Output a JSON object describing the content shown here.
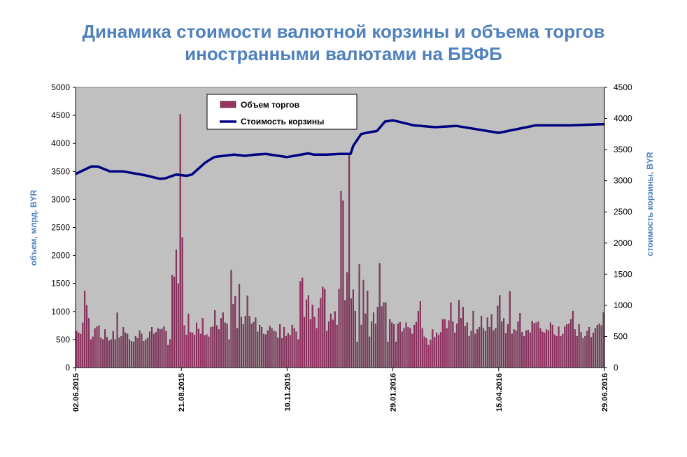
{
  "chart_data": {
    "type": "bar+line",
    "title_line1": "Динамика стоимости валютной корзины и объема торгов",
    "title_line2": "иностранными валютами на БВФБ",
    "y_left_label": "объем, млрд. BYR",
    "y_right_label": "стоимость корзины, BYR",
    "y_left_lim": [
      0,
      5000
    ],
    "y_right_lim": [
      0,
      4500
    ],
    "y_left_ticks": [
      "0",
      "500",
      "1000",
      "1500",
      "2000",
      "2500",
      "3000",
      "3500",
      "4000",
      "4500",
      "5000"
    ],
    "y_right_ticks": [
      "0",
      "500",
      "1000",
      "1500",
      "2000",
      "2500",
      "3000",
      "3500",
      "4000",
      "4500"
    ],
    "x_ticks": [
      "02.06.2015",
      "21.08.2015",
      "10.11.2015",
      "29.01.2016",
      "15.04.2016",
      "29.06.2016"
    ],
    "grid": false,
    "legend_position": "top-center",
    "series": [
      {
        "name": "Объем торгов",
        "kind": "bar",
        "color": "#993366",
        "values": [
          650,
          620,
          600,
          800,
          1370,
          1110,
          880,
          500,
          550,
          700,
          730,
          750,
          530,
          500,
          680,
          540,
          480,
          500,
          650,
          500,
          980,
          530,
          560,
          720,
          620,
          600,
          500,
          470,
          460,
          560,
          520,
          660,
          600,
          470,
          500,
          530,
          640,
          720,
          600,
          630,
          700,
          680,
          690,
          730,
          650,
          400,
          500,
          1650,
          1620,
          2100,
          1500,
          4520,
          2320,
          750,
          580,
          960,
          630,
          620,
          580,
          800,
          690,
          600,
          880,
          570,
          590,
          550,
          720,
          730,
          1020,
          750,
          680,
          880,
          980,
          800,
          780,
          500,
          1740,
          1130,
          1270,
          700,
          1490,
          900,
          770,
          920,
          1280,
          920,
          780,
          810,
          890,
          640,
          760,
          720,
          600,
          590,
          660,
          740,
          700,
          650,
          640,
          530,
          770,
          520,
          720,
          560,
          610,
          580,
          760,
          700,
          640,
          500,
          1540,
          1600,
          900,
          1210,
          1290,
          860,
          1120,
          900,
          700,
          1060,
          1240,
          1440,
          1400,
          650,
          820,
          960,
          850,
          1000,
          760,
          1400,
          3150,
          2980,
          1200,
          1700,
          3790,
          1230,
          1390,
          1010,
          460,
          1840,
          760,
          1560,
          960,
          1370,
          550,
          820,
          980,
          780,
          1080,
          1860,
          1090,
          1160,
          1160,
          460,
          860,
          800,
          770,
          460,
          780,
          810,
          640,
          700,
          800,
          720,
          700,
          600,
          760,
          810,
          1010,
          1180,
          700,
          550,
          520,
          400,
          490,
          680,
          540,
          620,
          580,
          630,
          860,
          860,
          700,
          840,
          1160,
          820,
          620,
          780,
          1200,
          880,
          1080,
          740,
          800,
          560,
          650,
          1010,
          600,
          680,
          720,
          920,
          700,
          650,
          890,
          720,
          950,
          660,
          700,
          1100,
          1290,
          820,
          880,
          610,
          770,
          1360,
          600,
          680,
          660,
          820,
          970,
          630,
          560,
          660,
          670,
          620,
          830,
          790,
          800,
          820,
          700,
          640,
          620,
          680,
          660,
          800,
          760,
          590,
          560,
          730,
          560,
          600,
          730,
          770,
          780,
          860,
          1010,
          680,
          560,
          770,
          630,
          520,
          560,
          650,
          720,
          540,
          620,
          700,
          760,
          780,
          750,
          980
        ]
      },
      {
        "name": "Стоимость корзины",
        "kind": "line",
        "color": "#000080",
        "x_fraction": [
          0,
          0.03,
          0.042,
          0.065,
          0.09,
          0.13,
          0.16,
          0.17,
          0.19,
          0.21,
          0.22,
          0.245,
          0.262,
          0.27,
          0.3,
          0.32,
          0.33,
          0.34,
          0.36,
          0.4,
          0.42,
          0.44,
          0.45,
          0.475,
          0.5,
          0.52,
          0.525,
          0.54,
          0.55,
          0.57,
          0.585,
          0.6,
          0.64,
          0.68,
          0.72,
          0.8,
          0.87,
          0.92,
          0.935,
          1.0
        ],
        "values": [
          3110,
          3230,
          3230,
          3150,
          3150,
          3090,
          3030,
          3040,
          3100,
          3080,
          3100,
          3290,
          3380,
          3390,
          3420,
          3400,
          3410,
          3420,
          3430,
          3380,
          3410,
          3440,
          3420,
          3420,
          3430,
          3430,
          3560,
          3750,
          3770,
          3800,
          3950,
          3970,
          3890,
          3860,
          3880,
          3770,
          3890,
          3890,
          3890,
          3910
        ]
      }
    ]
  },
  "legend": {
    "bar_label": "Объем торгов",
    "line_label": "Стоимость корзины"
  }
}
